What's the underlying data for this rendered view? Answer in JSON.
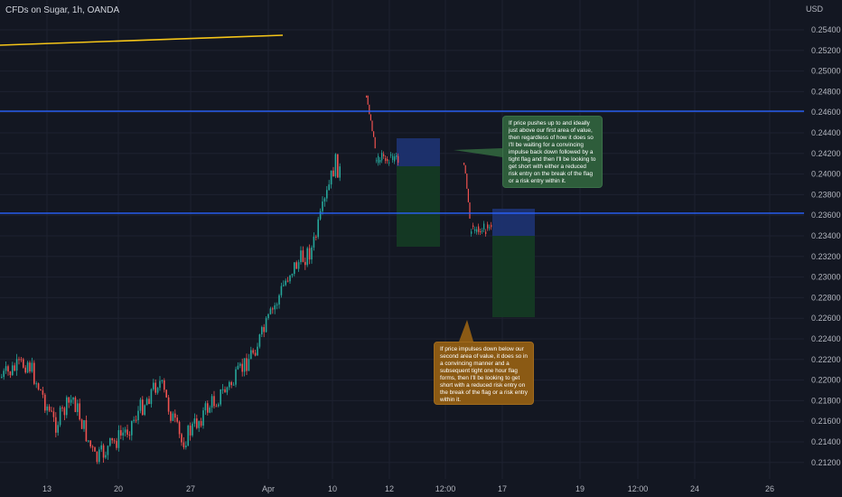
{
  "header": {
    "title": "CFDs on Sugar, 1h, OANDA",
    "currency": "USD"
  },
  "price_axis": {
    "labels": [
      "0.25400",
      "0.25200",
      "0.25000",
      "0.24800",
      "0.24600",
      "0.24400",
      "0.24200",
      "0.24000",
      "0.23800",
      "0.23600",
      "0.23400",
      "0.23200",
      "0.23000",
      "0.22800",
      "0.22600",
      "0.22400",
      "0.22200",
      "0.22000",
      "0.21800",
      "0.21600",
      "0.21400",
      "0.21200"
    ]
  },
  "time_axis": {
    "labels": [
      "13",
      "20",
      "27",
      "Apr",
      "10",
      "12",
      "12:00",
      "17",
      "19",
      "12:00",
      "24",
      "26"
    ]
  },
  "colors": {
    "background": "#131722",
    "up": "#26a69a",
    "down": "#ef5350",
    "level_line": "#2962ff",
    "trend_line": "#f5c518",
    "entry_zone": "#1c3270",
    "target_zone": "#143a24"
  },
  "levels": {
    "upper": 0.2461,
    "lower": 0.2362
  },
  "annotations": {
    "first_area": "If price pushes up to and ideally just above our first area of value, then regardless of how it does so I'll be waiting for a convincing impulse back down followed by a tight flag and then I'll be looking to get short with either a reduced risk entry on the break of the flag or a risk entry within it.",
    "second_area": "If price impulses down below our second area of value, it does so in a convincing manner and a subsequent tight one hour flag forms, then I'll be looking to get short with a reduced risk entry on the break of the flag or a risk entry within it."
  }
}
